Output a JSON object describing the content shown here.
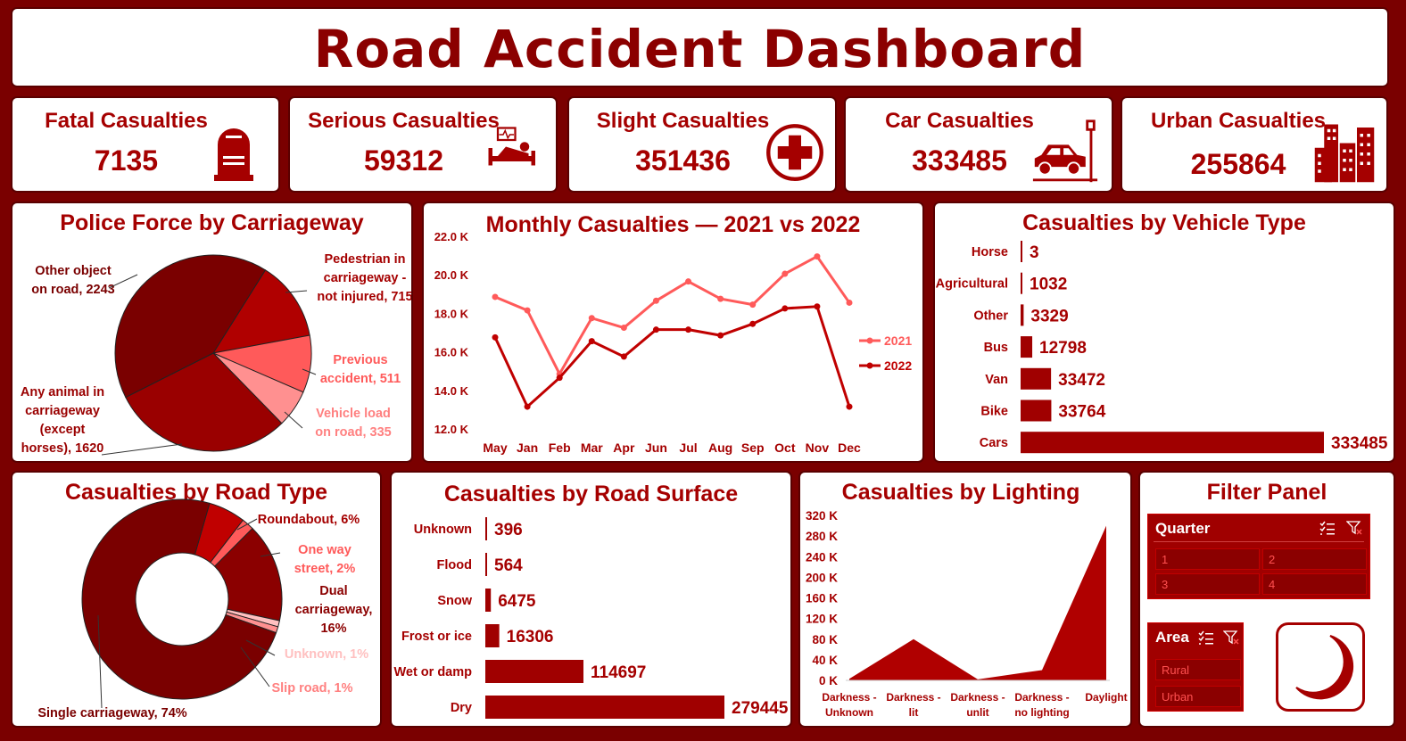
{
  "title": "Road Accident Dashboard",
  "kpis": [
    {
      "label": "Fatal Casualties",
      "value": "7135",
      "icon": "tombstone-icon"
    },
    {
      "label": "Serious Casualties",
      "value": "59312",
      "icon": "hospital-bed-icon"
    },
    {
      "label": "Slight Casualties",
      "value": "351436",
      "icon": "medical-cross-icon"
    },
    {
      "label": "Car Casualties",
      "value": "333485",
      "icon": "car-crash-icon"
    },
    {
      "label": "Urban Casualties",
      "value": "255864",
      "icon": "city-buildings-icon"
    }
  ],
  "colors": {
    "primary": "#a50000",
    "dark": "#7a0000",
    "s2021": "#ff5a5a",
    "s2022": "#c00000"
  },
  "filter": {
    "title": "Filter Panel",
    "quarter_label": "Quarter",
    "quarters": [
      "1",
      "2",
      "3",
      "4"
    ],
    "area_label": "Area",
    "areas": [
      "Rural",
      "Urban"
    ],
    "toggle_icon": "crescent-moon-icon"
  },
  "chart_data": [
    {
      "type": "pie",
      "title": "Police Force by Carriageway",
      "slices": [
        {
          "label": "Other object on road",
          "value": 2243,
          "color": "#7a0000"
        },
        {
          "label": "Pedestrian in carriageway - not injured",
          "value": 715,
          "color": "#b00000"
        },
        {
          "label": "Previous accident",
          "value": 511,
          "color": "#ff5a5a"
        },
        {
          "label": "Vehicle load on road",
          "value": 335,
          "color": "#ff9090"
        },
        {
          "label": "Any animal in carriageway (except horses)",
          "value": 1620,
          "color": "#9a0000"
        }
      ],
      "label_text": [
        "Other object",
        "on road, 2243",
        "Pedestrian in",
        "carriageway -",
        "not injured, 715",
        "Previous",
        "accident, 511",
        "Vehicle load",
        "on road, 335",
        "Any animal in",
        "carriageway",
        "(except",
        "horses), 1620"
      ]
    },
    {
      "type": "line",
      "title": "Monthly Casualties — 2021 vs 2022",
      "categories": [
        "May",
        "Jan",
        "Feb",
        "Mar",
        "Apr",
        "Jun",
        "Jul",
        "Aug",
        "Sep",
        "Oct",
        "Nov",
        "Dec"
      ],
      "series": [
        {
          "name": "2021",
          "values": [
            18900,
            18200,
            14900,
            17800,
            17300,
            18700,
            19700,
            18800,
            18500,
            20100,
            21000,
            18600
          ]
        },
        {
          "name": "2022",
          "values": [
            16800,
            13200,
            14700,
            16600,
            15800,
            17200,
            17200,
            16900,
            17500,
            18300,
            18400,
            13200
          ]
        }
      ],
      "ylim": [
        12000,
        22000
      ],
      "yticks": [
        "22.0 K",
        "20.0 K",
        "18.0 K",
        "16.0 K",
        "14.0 K",
        "12.0 K"
      ]
    },
    {
      "type": "bar",
      "title": "Casualties by Vehicle Type",
      "categories": [
        "Horse",
        "Agricultural",
        "Other",
        "Bus",
        "Van",
        "Bike",
        "Cars"
      ],
      "values": [
        3,
        1032,
        3329,
        12798,
        33472,
        33764,
        333485
      ]
    },
    {
      "type": "pie",
      "title": "Casualties by Road Type",
      "slices": [
        {
          "label": "Single carriageway",
          "value": 74,
          "color": "#7a0000"
        },
        {
          "label": "Roundabout",
          "value": 6,
          "color": "#c00000"
        },
        {
          "label": "One way street",
          "value": 2,
          "color": "#ff5a5a"
        },
        {
          "label": "Dual carriageway",
          "value": 16,
          "color": "#8b0000"
        },
        {
          "label": "Unknown",
          "value": 1,
          "color": "#ffc0c0"
        },
        {
          "label": "Slip road",
          "value": 1,
          "color": "#ff9090"
        }
      ],
      "label_text": [
        "Roundabout, 6%",
        "One way",
        "street, 2%",
        "Dual",
        "carriageway,",
        "16%",
        "Unknown, 1%",
        "Slip road, 1%",
        "Single carriageway, 74%"
      ]
    },
    {
      "type": "bar",
      "title": "Casualties by Road Surface",
      "categories": [
        "Unknown",
        "Flood",
        "Snow",
        "Frost or ice",
        "Wet or damp",
        "Dry"
      ],
      "values": [
        396,
        564,
        6475,
        16306,
        114697,
        279445
      ]
    },
    {
      "type": "area",
      "title": "Casualties by Lighting",
      "categories": [
        [
          "Darkness -",
          "Unknown"
        ],
        [
          "Darkness -",
          "lit"
        ],
        [
          "Darkness -",
          "unlit"
        ],
        [
          "Darkness -",
          "no lighting"
        ],
        [
          "Daylight"
        ]
      ],
      "values": [
        3000,
        80000,
        2000,
        20000,
        300000
      ],
      "ylim": [
        0,
        320000
      ],
      "yticks": [
        "320 K",
        "280 K",
        "240 K",
        "200 K",
        "160 K",
        "120 K",
        "80 K",
        "40 K",
        "0 K"
      ]
    }
  ]
}
